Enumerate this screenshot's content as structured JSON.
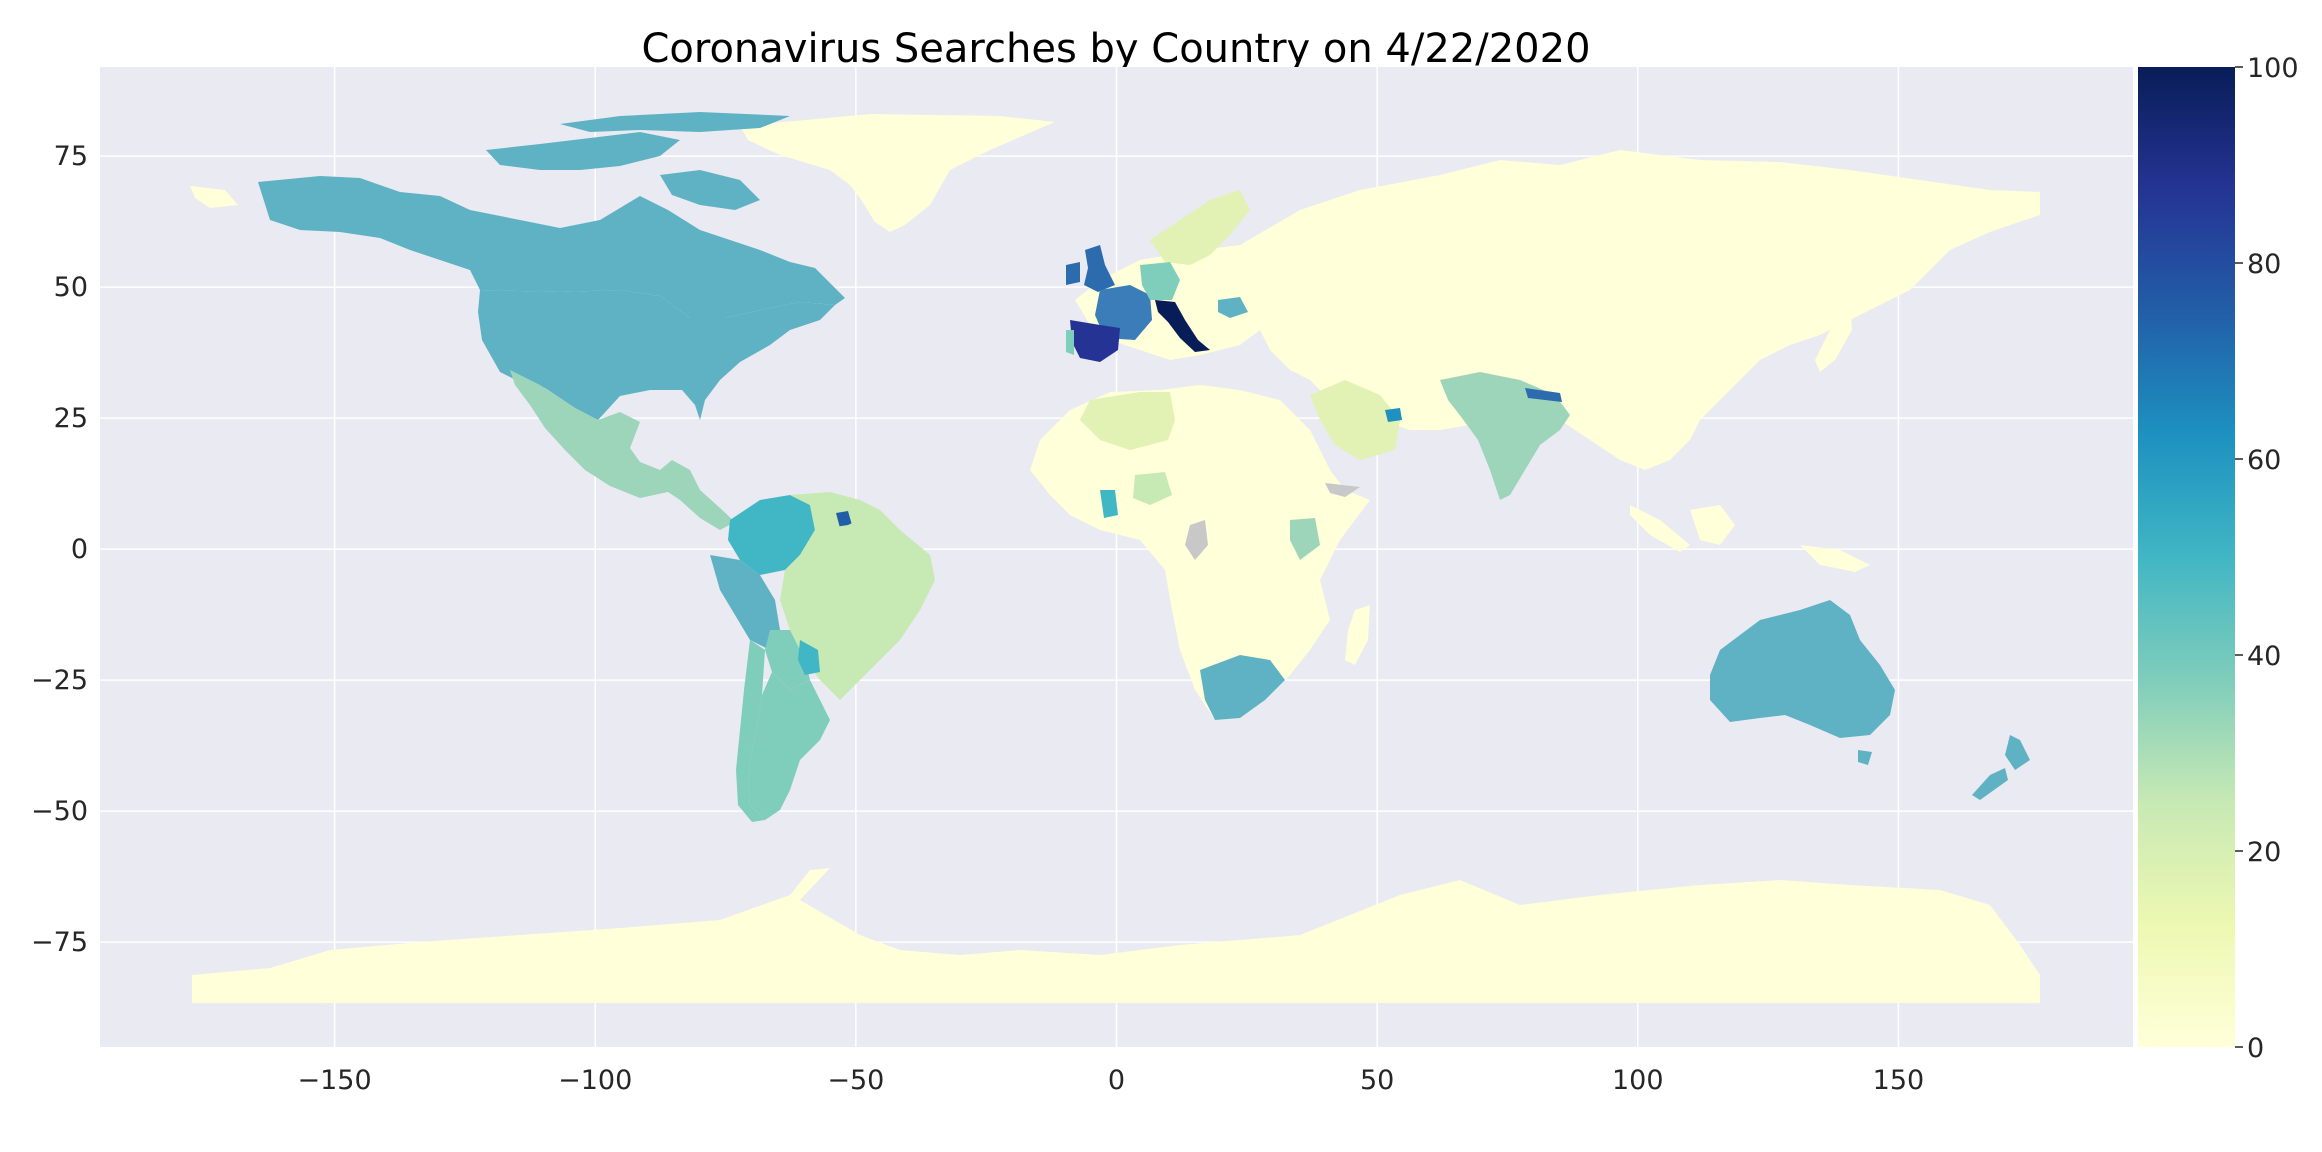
{
  "title": "Coronavirus Searches by Country on 4/22/2020",
  "x_ticks": [
    {
      "value": -150,
      "label": "−150"
    },
    {
      "value": -100,
      "label": "−100"
    },
    {
      "value": -50,
      "label": "−50"
    },
    {
      "value": 0,
      "label": "0"
    },
    {
      "value": 50,
      "label": "50"
    },
    {
      "value": 100,
      "label": "100"
    },
    {
      "value": 150,
      "label": "150"
    }
  ],
  "y_ticks": [
    {
      "value": 75,
      "label": "75"
    },
    {
      "value": 50,
      "label": "50"
    },
    {
      "value": 25,
      "label": "25"
    },
    {
      "value": 0,
      "label": "0"
    },
    {
      "value": -25,
      "label": "−25"
    },
    {
      "value": -50,
      "label": "−50"
    },
    {
      "value": -75,
      "label": "−75"
    }
  ],
  "colorbar": {
    "min": 0,
    "max": 100,
    "ticks": [
      {
        "value": 0,
        "label": "0"
      },
      {
        "value": 20,
        "label": "20"
      },
      {
        "value": 40,
        "label": "40"
      },
      {
        "value": 60,
        "label": "60"
      },
      {
        "value": 80,
        "label": "80"
      },
      {
        "value": 100,
        "label": "100"
      }
    ],
    "colormap": "YlGnBu",
    "stops": [
      "#ffffd9",
      "#edf8b1",
      "#c7e9b4",
      "#7fcdbb",
      "#41b6c4",
      "#1d91c0",
      "#225ea8",
      "#253494",
      "#081d58"
    ]
  },
  "colors": {
    "plot_background": "#eaeaf2",
    "grid": "#ffffff",
    "no_data": "#c8c8c8"
  },
  "chart_data": {
    "type": "choropleth",
    "title": "Coronavirus Searches by Country on 4/22/2020",
    "xlim": [
      -195,
      195
    ],
    "ylim": [
      -95,
      92
    ],
    "grid": true,
    "value_range": [
      0,
      100
    ],
    "regions": [
      {
        "name": "Canada",
        "value": 50
      },
      {
        "name": "United States",
        "value": 50
      },
      {
        "name": "Greenland",
        "value": 0
      },
      {
        "name": "Mexico",
        "value": 38
      },
      {
        "name": "Colombia",
        "value": 55
      },
      {
        "name": "Peru",
        "value": 52
      },
      {
        "name": "Brazil",
        "value": 28
      },
      {
        "name": "Argentina",
        "value": 48
      },
      {
        "name": "Chile",
        "value": 45
      },
      {
        "name": "United Kingdom",
        "value": 70
      },
      {
        "name": "France",
        "value": 65
      },
      {
        "name": "Spain",
        "value": 85
      },
      {
        "name": "Italy",
        "value": 100
      },
      {
        "name": "Germany",
        "value": 40
      },
      {
        "name": "Russia",
        "value": 0
      },
      {
        "name": "India",
        "value": 38
      },
      {
        "name": "Nepal",
        "value": 65
      },
      {
        "name": "China",
        "value": 0
      },
      {
        "name": "Australia",
        "value": 50
      },
      {
        "name": "New Zealand",
        "value": 52
      },
      {
        "name": "South Africa",
        "value": 52
      },
      {
        "name": "Ghana",
        "value": 55
      },
      {
        "name": "Nigeria",
        "value": 28
      },
      {
        "name": "Kenya",
        "value": 35
      },
      {
        "name": "Algeria",
        "value": 22
      },
      {
        "name": "Saudi Arabia",
        "value": 18
      },
      {
        "name": "United Arab Emirates",
        "value": 65
      },
      {
        "name": "Antarctica",
        "value": 0
      }
    ]
  }
}
